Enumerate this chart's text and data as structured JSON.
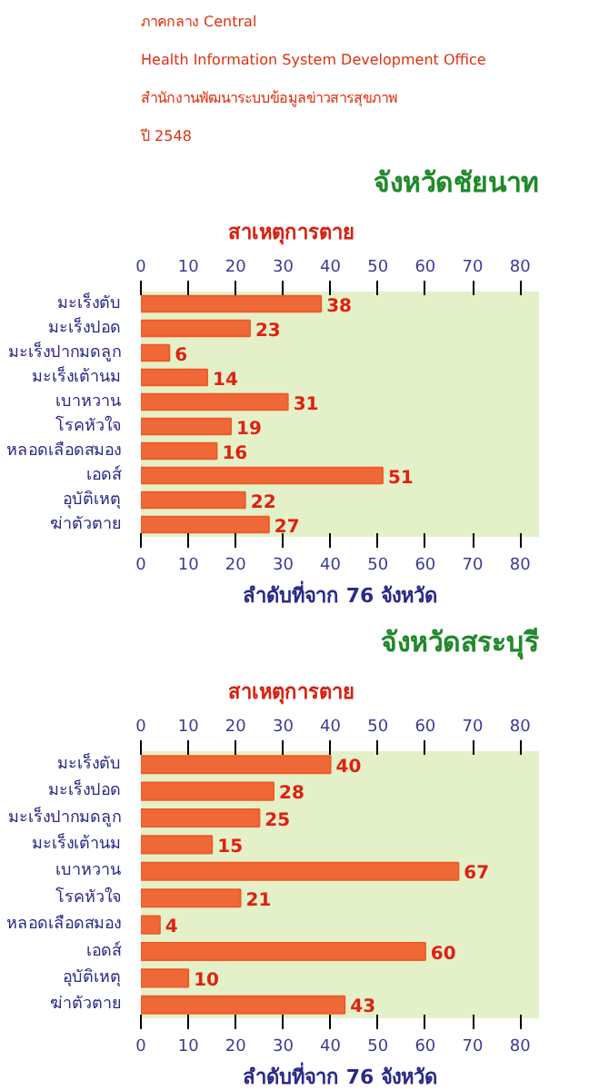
{
  "chart_data": [
    {
      "type": "bar",
      "orientation": "horizontal",
      "title": "จังหวัดชัยนาท",
      "ylabel": "สาเหตุการตาย",
      "xlabel": "ลำดับที่จาก 76 จังหวัด",
      "annotations": [
        "ภาคกลาง Central",
        "Health Information System Development Office",
        "สำนักงานพัฒนาระบบข้อมูลข่าวสารสุขภาพ",
        "ปี 2548"
      ],
      "categories": [
        "มะเร็งตับ",
        "มะเร็งปอด",
        "มะเร็งปากมดลูก",
        "มะเร็งเต้านม",
        "เบาหวาน",
        "โรคหัวใจ",
        "หลอดเลือดสมอง",
        "เอดส์",
        "อุบัติเหตุ",
        "ฆ่าตัวตาย"
      ],
      "values": [
        38,
        23,
        6,
        14,
        31,
        19,
        16,
        51,
        22,
        27
      ],
      "color": "#f05a28",
      "data_labels": true,
      "xlim": [
        0,
        84
      ],
      "xticks": [
        0,
        10,
        20,
        30,
        40,
        50,
        60,
        70,
        80
      ],
      "x2lim": [
        0,
        84
      ],
      "x2ticks": [
        0,
        10,
        20,
        30,
        40,
        50,
        60,
        70,
        80
      ]
    },
    {
      "type": "bar",
      "orientation": "horizontal",
      "title": "จังหวัดสระบุรี",
      "ylabel": "สาเหตุการตาย",
      "xlabel": "ลำดับที่จาก 76 จังหวัด",
      "categories": [
        "มะเร็งตับ",
        "มะเร็งปอด",
        "มะเร็งปากมดลูก",
        "มะเร็งเต้านม",
        "เบาหวาน",
        "โรคหัวใจ",
        "หลอดเลือดสมอง",
        "เอดส์",
        "อุบัติเหตุ",
        "ฆ่าตัวตาย"
      ],
      "values": [
        40,
        28,
        25,
        15,
        67,
        21,
        4,
        60,
        10,
        43
      ],
      "color": "#f05a28",
      "data_labels": true,
      "xlim": [
        0,
        84
      ],
      "xticks": [
        0,
        10,
        20,
        30,
        40,
        50,
        60,
        70,
        80
      ],
      "x2lim": [
        0,
        84
      ],
      "x2ticks": [
        0,
        10,
        20,
        30,
        40,
        50,
        60,
        70,
        80
      ]
    }
  ]
}
